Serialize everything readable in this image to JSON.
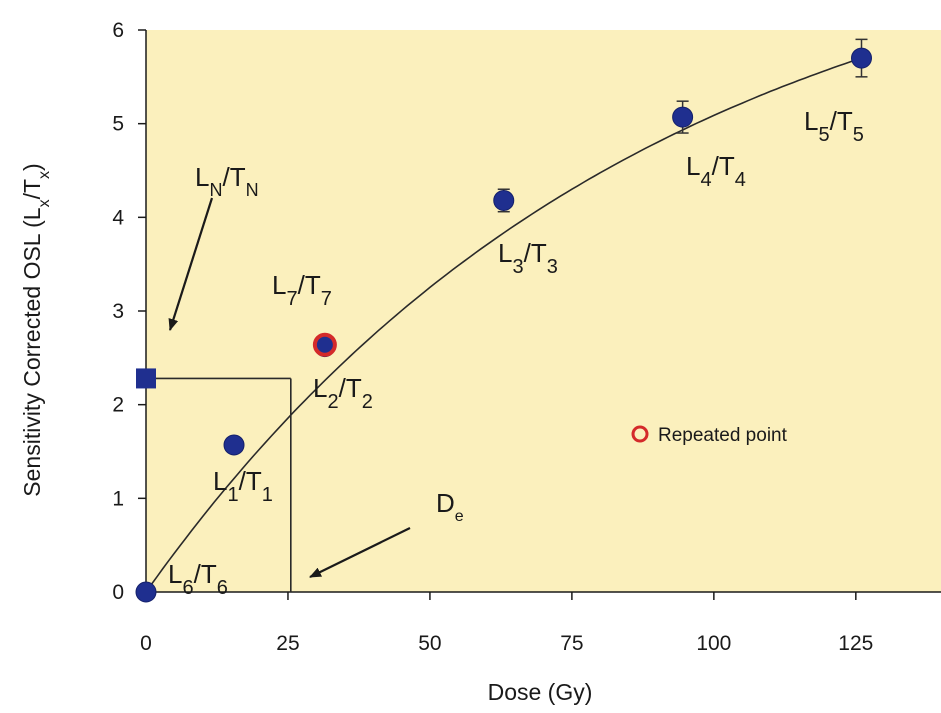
{
  "chart_data": {
    "type": "scatter",
    "title": "",
    "xlabel": "Dose (Gy)",
    "ylabel": {
      "main": "Sensitivity Corrected OSL (L",
      "sub1": "x",
      "mid": "/T",
      "sub2": "x",
      "end": ")"
    },
    "xlim": [
      -3,
      140
    ],
    "ylim": [
      -0.05,
      6
    ],
    "xticks": [
      0,
      25,
      50,
      75,
      100,
      125
    ],
    "yticks": [
      0,
      1,
      2,
      3,
      4,
      5,
      6
    ],
    "grid": false,
    "background_color": "#fbf0bd",
    "marker_color": "#1f2f8f",
    "repeat_color": "#d42a2a",
    "points": [
      {
        "x": 0,
        "y": 0,
        "err": 0,
        "label": {
          "main": "L",
          "sub1": "6",
          "mid": "/T",
          "sub2": "6"
        }
      },
      {
        "x": 15.5,
        "y": 1.57,
        "err": 0.05,
        "label": {
          "main": "L",
          "sub1": "1",
          "mid": "/T",
          "sub2": "1"
        }
      },
      {
        "x": 31.5,
        "y": 2.62,
        "err": 0.06,
        "label": {
          "main": "L",
          "sub1": "2",
          "mid": "/T",
          "sub2": "2"
        }
      },
      {
        "x": 63,
        "y": 4.18,
        "err": 0.12,
        "label": {
          "main": "L",
          "sub1": "3",
          "mid": "/T",
          "sub2": "3"
        }
      },
      {
        "x": 94.5,
        "y": 5.07,
        "err": 0.17,
        "label": {
          "main": "L",
          "sub1": "4",
          "mid": "/T",
          "sub2": "4"
        }
      },
      {
        "x": 126,
        "y": 5.7,
        "err": 0.2,
        "label": {
          "main": "L",
          "sub1": "5",
          "mid": "/T",
          "sub2": "5"
        }
      }
    ],
    "repeated_point": {
      "x": 31.5,
      "y": 2.64,
      "label": {
        "main": "L",
        "sub1": "7",
        "mid": "/T",
        "sub2": "7"
      }
    },
    "natural_signal": {
      "x": 0,
      "y": 2.28,
      "label": {
        "main": "L",
        "sub1": "N",
        "mid": "/T",
        "sub2": "N"
      }
    },
    "equivalent_dose": {
      "x": 25.5,
      "label": {
        "main": "D",
        "sub1": "e"
      }
    },
    "legend": {
      "label": "Repeated point",
      "position": "center-right"
    }
  }
}
